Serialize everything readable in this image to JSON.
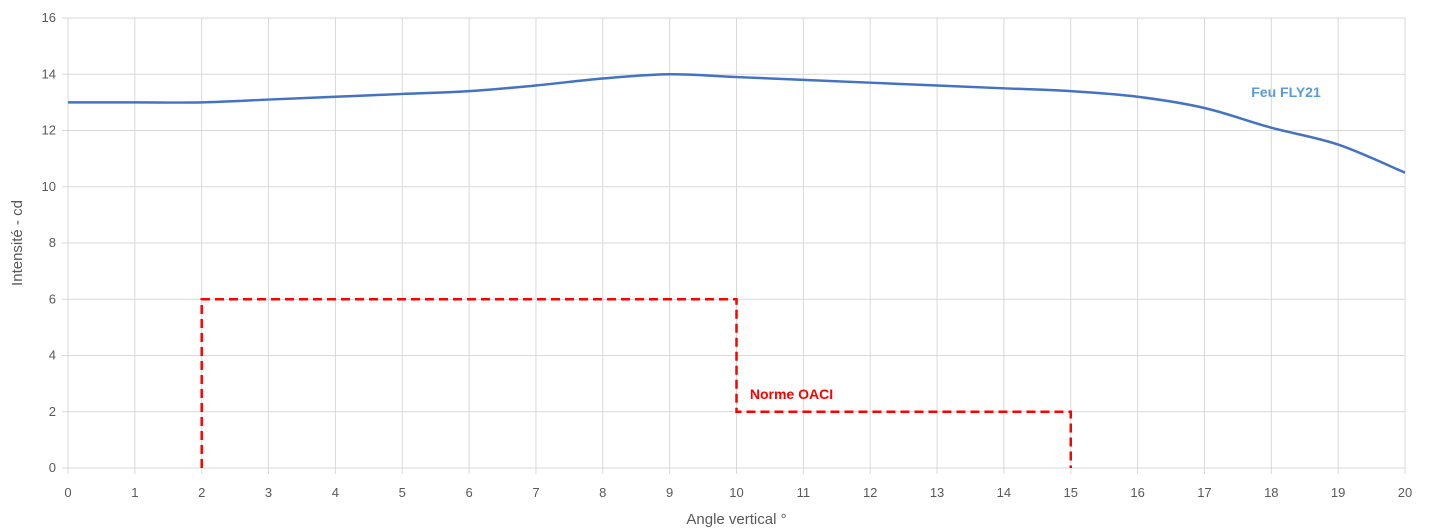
{
  "chart_data": {
    "type": "line",
    "title": "",
    "xlabel": "Angle vertical °",
    "ylabel": "Intensité - cd",
    "xlim": [
      0,
      20
    ],
    "ylim": [
      0,
      16
    ],
    "xticks": [
      0,
      1,
      2,
      3,
      4,
      5,
      6,
      7,
      8,
      9,
      10,
      11,
      12,
      13,
      14,
      15,
      16,
      17,
      18,
      19,
      20
    ],
    "yticks": [
      0,
      2,
      4,
      6,
      8,
      10,
      12,
      14,
      16
    ],
    "grid": true,
    "series": [
      {
        "name": "Feu FLY21",
        "color": "#4472c4",
        "label_color": "#5b9bd5",
        "style": "solid",
        "x": [
          0,
          1,
          2,
          3,
          4,
          5,
          6,
          7,
          8,
          9,
          10,
          11,
          12,
          13,
          14,
          15,
          16,
          17,
          18,
          19,
          20
        ],
        "y": [
          13.0,
          13.0,
          13.0,
          13.1,
          13.2,
          13.3,
          13.4,
          13.6,
          13.85,
          14.0,
          13.9,
          13.8,
          13.7,
          13.6,
          13.5,
          13.4,
          13.2,
          12.8,
          12.1,
          11.5,
          10.5
        ]
      },
      {
        "name": "Norme OACI",
        "color": "#ff0000",
        "label_color": "#ff0000",
        "style": "dashed",
        "x": [
          2,
          2,
          10,
          10,
          15,
          15
        ],
        "y": [
          0,
          6,
          6,
          2,
          2,
          0
        ]
      }
    ]
  }
}
